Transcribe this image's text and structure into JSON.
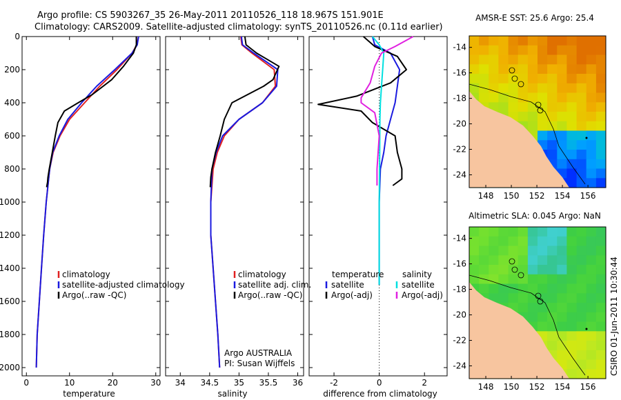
{
  "header": {
    "line1": "Argo profile: CS 5903267_35 26-May-2011 20110526_118 18.967S 151.901E",
    "line2": "Climatology: CARS2009. Satellite-adjusted climatology: synTS_20110526.nc (0.11d earlier)"
  },
  "colors": {
    "climatology": "#e02020",
    "satellite": "#1a1adf",
    "argo": "#000000",
    "satellite_light": "#00e0e0",
    "argo_adj": "#e020e0",
    "land": "#f7c59f"
  },
  "chart_data": [
    {
      "type": "line",
      "name": "temperature",
      "xlabel": "temperature",
      "xlim": [
        -1,
        31
      ],
      "ylim": [
        2050,
        0
      ],
      "xticks": [
        0,
        10,
        20,
        30
      ],
      "yticks": [
        0,
        200,
        400,
        600,
        800,
        1000,
        1200,
        1400,
        1600,
        1800,
        2000
      ],
      "series": [
        {
          "name": "climatology",
          "color": "#e02020",
          "x": [
            26.0,
            25.6,
            24.5,
            21.0,
            17.0,
            13.5,
            10.0,
            7.8,
            6.2,
            5.4,
            4.6,
            4.0,
            3.5,
            3.0,
            2.5,
            2.3
          ],
          "y": [
            0,
            50,
            100,
            200,
            300,
            400,
            500,
            600,
            700,
            800,
            1000,
            1200,
            1400,
            1600,
            1800,
            2000
          ]
        },
        {
          "name": "satellite-adjusted climatology",
          "color": "#1a1adf",
          "x": [
            26.0,
            25.7,
            24.5,
            20.5,
            16.3,
            12.8,
            9.6,
            7.6,
            6.1,
            5.4,
            4.6,
            4.0,
            3.5,
            3.0,
            2.5,
            2.3
          ],
          "y": [
            0,
            50,
            100,
            200,
            300,
            400,
            500,
            600,
            700,
            800,
            1000,
            1200,
            1400,
            1600,
            1800,
            2000
          ]
        },
        {
          "name": "Argo(..raw -QC)",
          "color": "#000000",
          "x": [
            25.5,
            25.5,
            24.8,
            22.5,
            19.8,
            15.3,
            12.0,
            8.8,
            7.3,
            6.7,
            6.0,
            5.3,
            5.0,
            4.9,
            4.7
          ],
          "y": [
            0,
            50,
            100,
            180,
            260,
            350,
            400,
            450,
            520,
            600,
            700,
            800,
            850,
            880,
            910
          ]
        }
      ],
      "legend": [
        "climatology",
        "satellite-adjusted climatology",
        "Argo(..raw -QC)"
      ]
    },
    {
      "type": "line",
      "name": "salinity",
      "xlabel": "salinity",
      "xlim": [
        33.75,
        36.1
      ],
      "ylim": [
        2050,
        0
      ],
      "xticks": [
        34,
        34.5,
        35,
        35.5,
        36
      ],
      "series": [
        {
          "name": "climatology",
          "color": "#e02020",
          "x": [
            35.03,
            35.05,
            35.22,
            35.6,
            35.62,
            35.4,
            35.0,
            34.75,
            34.63,
            34.56,
            34.52,
            34.52,
            34.56,
            34.6,
            34.64,
            34.67
          ],
          "y": [
            0,
            50,
            100,
            200,
            300,
            400,
            500,
            600,
            700,
            800,
            1000,
            1200,
            1400,
            1600,
            1800,
            2000
          ]
        },
        {
          "name": "satellite adj. clim.",
          "color": "#1a1adf",
          "x": [
            35.04,
            35.06,
            35.25,
            35.66,
            35.64,
            35.4,
            35.0,
            34.72,
            34.61,
            34.54,
            34.52,
            34.52,
            34.56,
            34.6,
            34.64,
            34.67
          ],
          "y": [
            0,
            50,
            100,
            200,
            300,
            400,
            500,
            600,
            700,
            800,
            1000,
            1200,
            1400,
            1600,
            1800,
            2000
          ]
        },
        {
          "name": "Argo(..raw -QC)",
          "color": "#000000",
          "x": [
            35.1,
            35.12,
            35.3,
            35.68,
            35.58,
            35.42,
            34.88,
            34.75,
            34.68,
            34.6,
            34.54,
            34.52,
            34.51
          ],
          "y": [
            0,
            50,
            100,
            180,
            260,
            300,
            400,
            500,
            600,
            700,
            800,
            850,
            910
          ]
        }
      ],
      "legend": [
        "climatology",
        "satellite adj. clim.",
        "Argo(..raw -QC)"
      ],
      "annotation": [
        "Argo AUSTRALIA",
        "PI: Susan Wijffels"
      ]
    },
    {
      "type": "line",
      "name": "difference",
      "xlabel": "difference from climatology",
      "xlim": [
        -3.1,
        3.0
      ],
      "ylim": [
        2050,
        0
      ],
      "xticks": [
        -2,
        0,
        2
      ],
      "series": [
        {
          "name": "temperature satellite",
          "color": "#1a1adf",
          "x": [
            -0.3,
            -0.2,
            0.5,
            0.9,
            0.8,
            0.7,
            0.5,
            0.3,
            0.2,
            0.05,
            0.0,
            0.0,
            0.0
          ],
          "y": [
            0,
            50,
            100,
            200,
            300,
            400,
            500,
            600,
            700,
            800,
            1000,
            1200,
            1500
          ]
        },
        {
          "name": "Argo(-adj) temperature",
          "color": "#000000",
          "x": [
            -0.7,
            -0.2,
            0.8,
            1.2,
            0.5,
            -1.0,
            -2.7,
            -0.8,
            -0.3,
            0.7,
            0.8,
            1.0,
            1.0,
            0.6
          ],
          "y": [
            0,
            60,
            120,
            200,
            280,
            360,
            410,
            450,
            520,
            600,
            700,
            800,
            860,
            900
          ]
        },
        {
          "name": "salinity satellite",
          "color": "#00e0e0",
          "x": [
            -0.3,
            0.0,
            0.2,
            0.15,
            0.1,
            0.05,
            0.03,
            0.02,
            0.0,
            0.0,
            0.0
          ],
          "y": [
            0,
            50,
            100,
            200,
            300,
            400,
            500,
            700,
            1000,
            1200,
            1500
          ]
        },
        {
          "name": "salinity Argo(-adj)",
          "color": "#e020e0",
          "x": [
            1.5,
            0.7,
            0.1,
            -0.2,
            -0.4,
            -0.8,
            -0.8,
            -0.2,
            0.0,
            -0.1,
            -0.1
          ],
          "y": [
            0,
            60,
            100,
            180,
            280,
            370,
            400,
            460,
            600,
            800,
            900
          ]
        }
      ],
      "legend": {
        "temperature_header": "temperature",
        "salinity_header": "salinity",
        "items": [
          "satellite",
          "Argo(-adj)",
          "satellite",
          "Argo(-adj)"
        ]
      }
    }
  ],
  "maps": [
    {
      "title": "AMSR-E SST: 25.6 Argo: 25.4",
      "xticks": [
        "148",
        "150",
        "152",
        "154",
        "156"
      ],
      "yticks": [
        "-14",
        "-16",
        "-18",
        "-20",
        "-22",
        "-24"
      ],
      "xlim": [
        146.7,
        157.4
      ],
      "ylim": [
        -25,
        -13.1
      ],
      "palette": [
        "#0030ff",
        "#00a0ff",
        "#00d0c0",
        "#40d040",
        "#a0e020",
        "#e0e000",
        "#f0b000",
        "#e07000"
      ]
    },
    {
      "title": "Altimetric SLA: 0.045 Argo: NaN",
      "xticks": [
        "148",
        "150",
        "152",
        "154",
        "156"
      ],
      "yticks": [
        "-14",
        "-16",
        "-18",
        "-20",
        "-22",
        "-24"
      ],
      "xlim": [
        146.7,
        157.4
      ],
      "ylim": [
        -25,
        -13.1
      ],
      "palette": [
        "#40d0d0",
        "#30c070",
        "#40d040",
        "#70e030",
        "#c0e820",
        "#e8e800"
      ]
    }
  ],
  "footer": {
    "stamp": "CSIRO 01-Jun-2011 10:30:44"
  }
}
